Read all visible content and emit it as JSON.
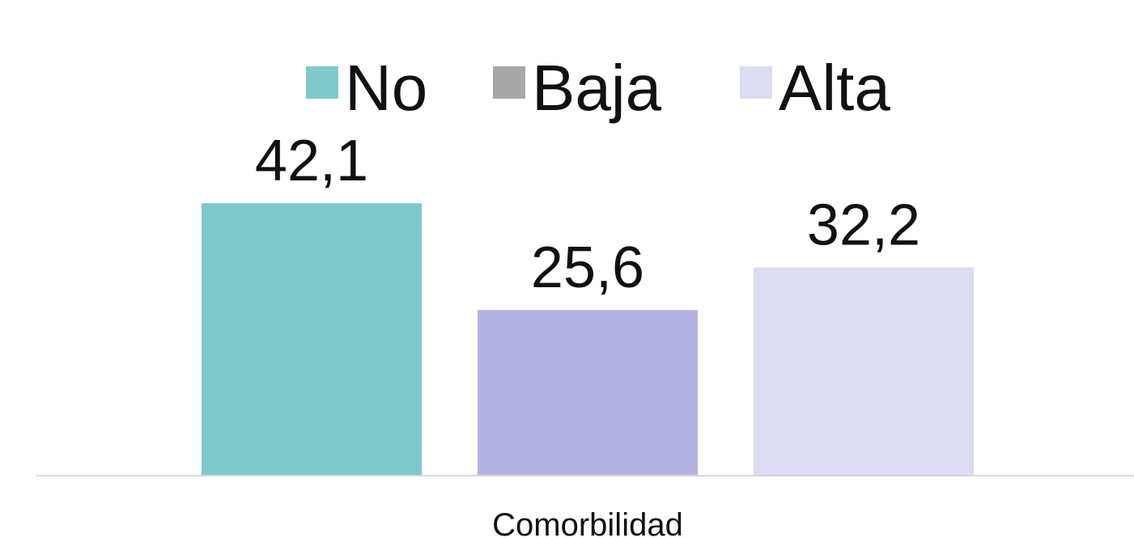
{
  "chart_data": {
    "type": "bar",
    "categories": [
      "Comorbilidad"
    ],
    "series": [
      {
        "name": "No",
        "color": "#7fc8cc",
        "legend_color": "#7fc8cc",
        "values": [
          42.1
        ],
        "value_labels": [
          "42,1"
        ]
      },
      {
        "name": "Baja",
        "color": "#b3b3e4",
        "legend_color": "#a8a8a8",
        "values": [
          25.6
        ],
        "value_labels": [
          "25,6"
        ]
      },
      {
        "name": "Alta",
        "color": "#dcdcf2",
        "legend_color": "#dcdcf2",
        "values": [
          32.2
        ],
        "value_labels": [
          "32,2"
        ]
      }
    ],
    "ylim": [
      0,
      50
    ]
  }
}
